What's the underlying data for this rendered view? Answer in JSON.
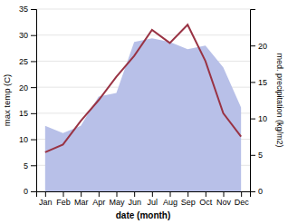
{
  "chart_data": {
    "type": "line",
    "categories": [
      "Jan",
      "Feb",
      "Mar",
      "Apr",
      "May",
      "Jun",
      "Jul",
      "Aug",
      "Sep",
      "Oct",
      "Nov",
      "Dec"
    ],
    "series": [
      {
        "type": "area",
        "axis": "y2",
        "color": "#b8c0e8",
        "values": [
          9.0,
          8.0,
          9.0,
          13.0,
          13.5,
          20.5,
          21.0,
          20.5,
          19.5,
          20.0,
          17.0,
          11.5
        ]
      },
      {
        "type": "line",
        "color": "#993344",
        "values": [
          7.5,
          9.0,
          13.5,
          17.5,
          22.0,
          26.0,
          31.0,
          28.5,
          32.0,
          25.0,
          15.0,
          10.5
        ]
      }
    ],
    "x_label": "date (month)",
    "y_label": "max temp (C)",
    "y2_label": "med. precipitation (kg/m2)",
    "ylim": [
      0,
      35
    ],
    "yticks": [
      0,
      5,
      10,
      15,
      20,
      25,
      30,
      35
    ],
    "y2lim": [
      0,
      25
    ],
    "y2ticks": [
      0,
      5,
      10,
      15,
      20
    ],
    "grid": true
  }
}
